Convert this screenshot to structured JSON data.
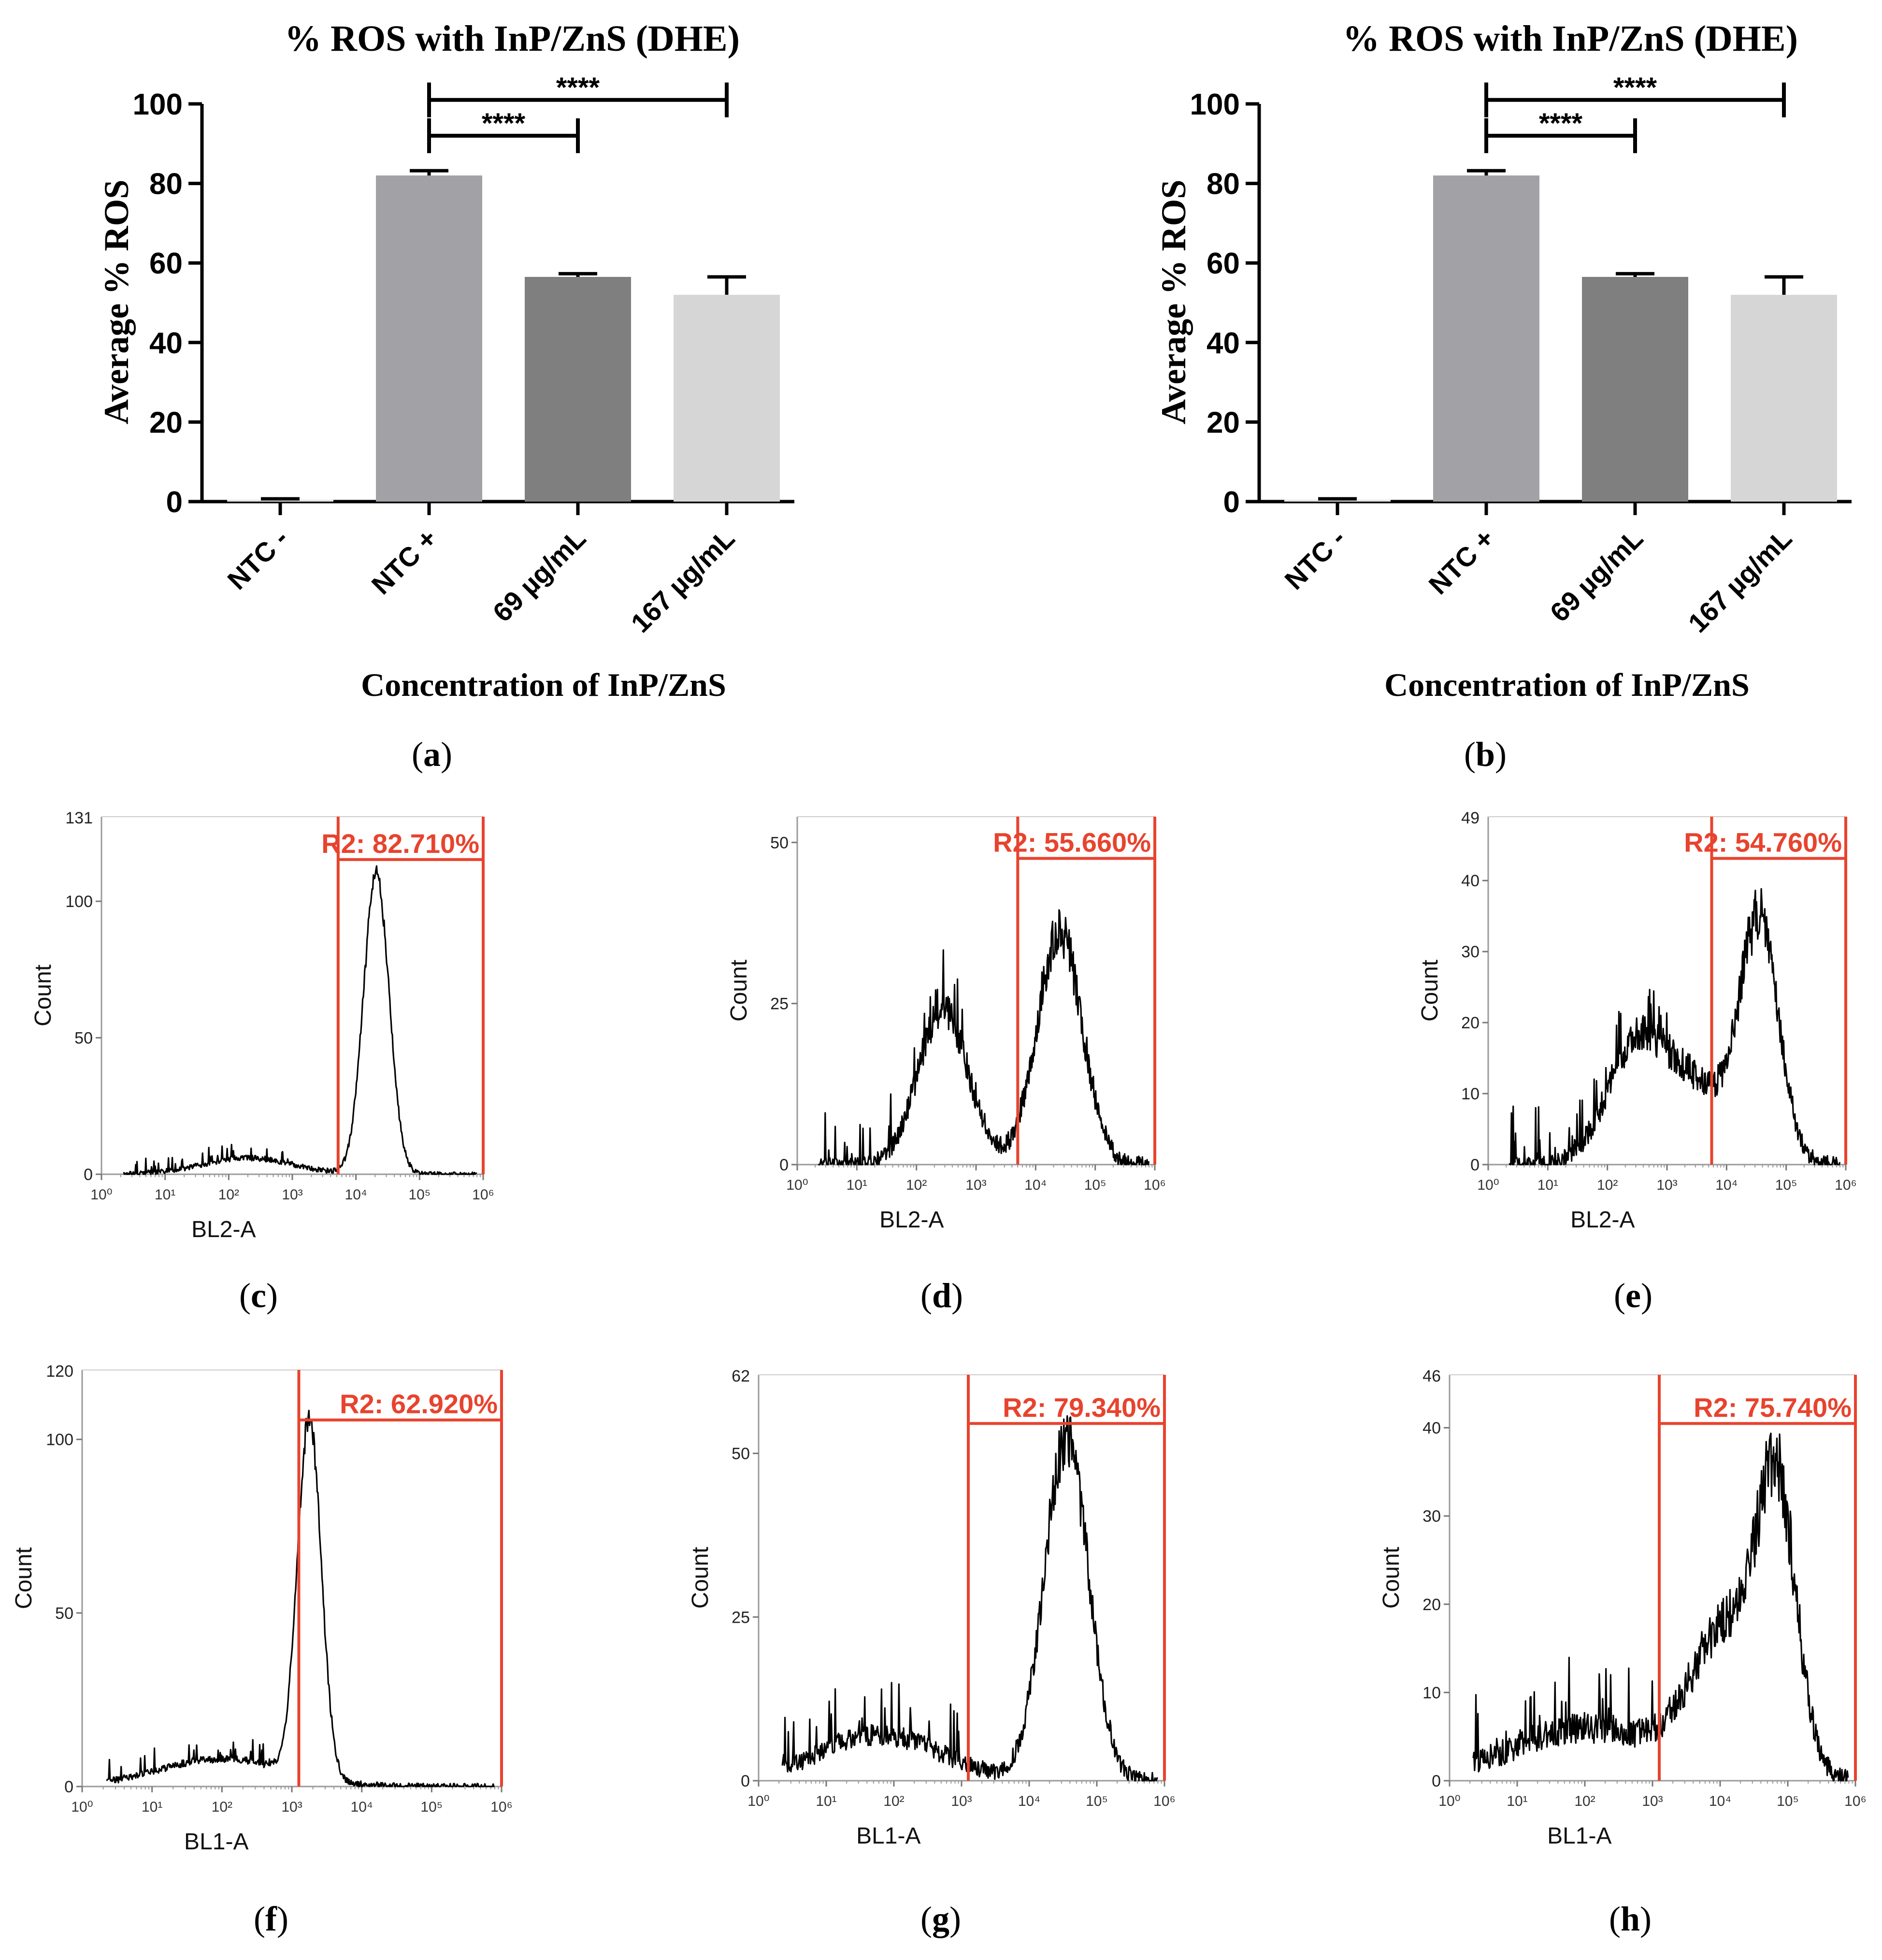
{
  "colors": {
    "gate": "#e8432e",
    "bar_negative": "#e6e6e6",
    "bar_positive": "#a1a1a6",
    "bar_69": "#7f7f7f",
    "bar_167": "#d6d6d6",
    "axis": "#000000"
  },
  "panels": [
    {
      "open": "(",
      "letter": "a",
      "close": ")"
    },
    {
      "open": "(",
      "letter": "b",
      "close": ")"
    },
    {
      "open": "(",
      "letter": "c",
      "close": ")"
    },
    {
      "open": "(",
      "letter": "d",
      "close": ")"
    },
    {
      "open": "(",
      "letter": "e",
      "close": ")"
    },
    {
      "open": "(",
      "letter": "f",
      "close": ")"
    },
    {
      "open": "(",
      "letter": "g",
      "close": ")"
    },
    {
      "open": "(",
      "letter": "h",
      "close": ")"
    }
  ],
  "chart_data": [
    {
      "panel": "a",
      "type": "bar",
      "title": "% ROS with InP/ZnS (DHE)",
      "xlabel": "Concentration of InP/ZnS",
      "ylabel": "Average % ROS",
      "ylim": [
        0,
        100
      ],
      "yticks": [
        "0",
        "20",
        "40",
        "60",
        "80",
        "100"
      ],
      "categories": [
        "NTC -",
        "NTC +",
        "69 µg/mL",
        "167 µg/mL"
      ],
      "values": [
        0.5,
        82,
        56.5,
        52
      ],
      "errors": [
        0.2,
        1.2,
        0.8,
        4.5
      ],
      "significance": [
        {
          "from": 1,
          "to": 2,
          "label": "****"
        },
        {
          "from": 1,
          "to": 3,
          "label": "****"
        }
      ]
    },
    {
      "panel": "b",
      "type": "bar",
      "title": "% ROS with InP/ZnS (DHE)",
      "xlabel": "Concentration of InP/ZnS",
      "ylabel": "Average % ROS",
      "ylim": [
        0,
        100
      ],
      "yticks": [
        "0",
        "20",
        "40",
        "60",
        "80",
        "100"
      ],
      "categories": [
        "NTC -",
        "NTC +",
        "69 µg/mL",
        "167 µg/mL"
      ],
      "values": [
        0.5,
        82,
        56.5,
        52
      ],
      "errors": [
        0.2,
        1.2,
        0.8,
        4.5
      ],
      "significance": [
        {
          "from": 1,
          "to": 2,
          "label": "****"
        },
        {
          "from": 1,
          "to": 3,
          "label": "****"
        }
      ]
    },
    {
      "panel": "c",
      "type": "histogram",
      "xlabel": "BL2-A",
      "ylabel": "Count",
      "ymax": 131,
      "yticks": [
        0,
        50,
        100
      ],
      "ymax_label": "131",
      "gate_label": "R2: 82.710%",
      "gate_range_log10": [
        3.72,
        6.0
      ],
      "peaks": [
        {
          "log10": 2.3,
          "height": 6,
          "width": 0.7
        },
        {
          "log10": 4.32,
          "height": 110,
          "width": 0.2
        }
      ],
      "noise": 3
    },
    {
      "panel": "d",
      "type": "histogram",
      "xlabel": "BL2-A",
      "ylabel": "Count",
      "ymax": 54,
      "yticks": [
        0,
        25,
        50
      ],
      "ymax_label": "",
      "gate_label": "R2: 55.660%",
      "gate_range_log10": [
        3.7,
        6.0
      ],
      "peaks": [
        {
          "log10": 2.45,
          "height": 24,
          "width": 0.42
        },
        {
          "log10": 4.4,
          "height": 36,
          "width": 0.38
        }
      ],
      "noise": 4
    },
    {
      "panel": "e",
      "type": "histogram",
      "xlabel": "BL2-A",
      "ylabel": "Count",
      "ymax": 49,
      "yticks": [
        0,
        10,
        20,
        30,
        40
      ],
      "ymax_label": "49",
      "gate_label": "R2: 54.760%",
      "gate_range_log10": [
        3.75,
        6.0
      ],
      "peaks": [
        {
          "log10": 2.5,
          "height": 17,
          "width": 0.5
        },
        {
          "log10": 3.5,
          "height": 10,
          "width": 0.5
        },
        {
          "log10": 4.55,
          "height": 34,
          "width": 0.33
        }
      ],
      "noise": 4
    },
    {
      "panel": "f",
      "type": "histogram",
      "xlabel": "BL1-A",
      "ylabel": "Count",
      "ymax": 120,
      "yticks": [
        0,
        50,
        100
      ],
      "ymax_label": "120",
      "gate_label": "R2: 62.920%",
      "gate_range_log10": [
        3.1,
        6.0
      ],
      "peaks": [
        {
          "log10": 3.25,
          "height": 103,
          "width": 0.17
        },
        {
          "log10": 2.0,
          "height": 8,
          "width": 0.9
        }
      ],
      "noise": 3
    },
    {
      "panel": "g",
      "type": "histogram",
      "xlabel": "BL1-A",
      "ylabel": "Count",
      "ymax": 62,
      "yticks": [
        0,
        25,
        50
      ],
      "ymax_label": "62",
      "gate_label": "R2: 79.340%",
      "gate_range_log10": [
        3.1,
        6.0
      ],
      "peaks": [
        {
          "log10": 4.55,
          "height": 52,
          "width": 0.33
        },
        {
          "log10": 1.8,
          "height": 7,
          "width": 0.9
        }
      ],
      "noise": 4
    },
    {
      "panel": "h",
      "type": "histogram",
      "xlabel": "BL1-A",
      "ylabel": "Count",
      "ymax": 46,
      "yticks": [
        0,
        10,
        20,
        30,
        40
      ],
      "ymax_label": "46",
      "gate_label": "R2: 75.740%",
      "gate_range_log10": [
        3.1,
        6.0
      ],
      "peaks": [
        {
          "log10": 4.15,
          "height": 17,
          "width": 0.55
        },
        {
          "log10": 4.85,
          "height": 28,
          "width": 0.28
        },
        {
          "log10": 2.0,
          "height": 6,
          "width": 1.1
        }
      ],
      "noise": 4
    }
  ]
}
